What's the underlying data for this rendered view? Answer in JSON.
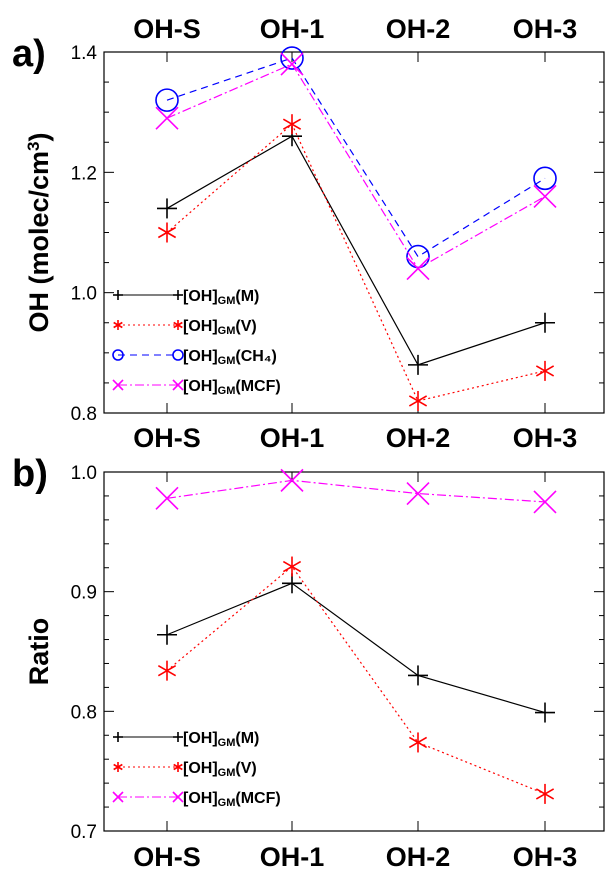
{
  "chart_data": [
    {
      "type": "line",
      "panel": "a)",
      "categories": [
        "OH-S",
        "OH-1",
        "OH-2",
        "OH-3"
      ],
      "ylabel": "OH (molec/cm",
      "ylabel_sup": "3",
      "ylabel_close": ")",
      "ylim": [
        0.8,
        1.4
      ],
      "yticks": [
        "0.8",
        "1.0",
        "1.2",
        "1.4"
      ],
      "grid": false,
      "legend_position": "bottom-left",
      "series": [
        {
          "name_main": "[OH]",
          "name_sub": "GM",
          "name_rest": "(M)",
          "color": "#000000",
          "marker": "plus",
          "dash": "",
          "values": [
            1.14,
            1.26,
            0.88,
            0.95
          ]
        },
        {
          "name_main": "[OH]",
          "name_sub": "GM",
          "name_rest": "(V)",
          "color": "#ff0000",
          "marker": "asterisk",
          "dash": "2,3",
          "values": [
            1.1,
            1.28,
            0.82,
            0.87
          ]
        },
        {
          "name_main": "[OH]",
          "name_sub": "GM",
          "name_rest": "(CH₄)",
          "color": "#0000ff",
          "marker": "circle",
          "dash": "7,5",
          "values": [
            1.32,
            1.39,
            1.06,
            1.19
          ]
        },
        {
          "name_main": "[OH]",
          "name_sub": "GM",
          "name_rest": "(MCF)",
          "color": "#ff00ff",
          "marker": "cross",
          "dash": "9,3,2,3",
          "values": [
            1.29,
            1.38,
            1.04,
            1.16
          ]
        }
      ]
    },
    {
      "type": "line",
      "panel": "b)",
      "categories": [
        "OH-S",
        "OH-1",
        "OH-2",
        "OH-3"
      ],
      "ylabel": "Ratio",
      "ylim": [
        0.7,
        1.0
      ],
      "yticks": [
        "0.7",
        "0.8",
        "0.9",
        "1.0"
      ],
      "grid": false,
      "legend_position": "bottom-left",
      "series": [
        {
          "name_main": "[OH]",
          "name_sub": "GM",
          "name_rest": "(M)",
          "color": "#000000",
          "marker": "plus",
          "dash": "",
          "values": [
            0.864,
            0.907,
            0.83,
            0.799
          ]
        },
        {
          "name_main": "[OH]",
          "name_sub": "GM",
          "name_rest": "(V)",
          "color": "#ff0000",
          "marker": "asterisk",
          "dash": "2,3",
          "values": [
            0.834,
            0.921,
            0.774,
            0.731
          ]
        },
        {
          "name_main": "[OH]",
          "name_sub": "GM",
          "name_rest": "(MCF)",
          "color": "#ff00ff",
          "marker": "cross",
          "dash": "9,3,2,3",
          "values": [
            0.978,
            0.993,
            0.982,
            0.975
          ]
        }
      ]
    }
  ]
}
